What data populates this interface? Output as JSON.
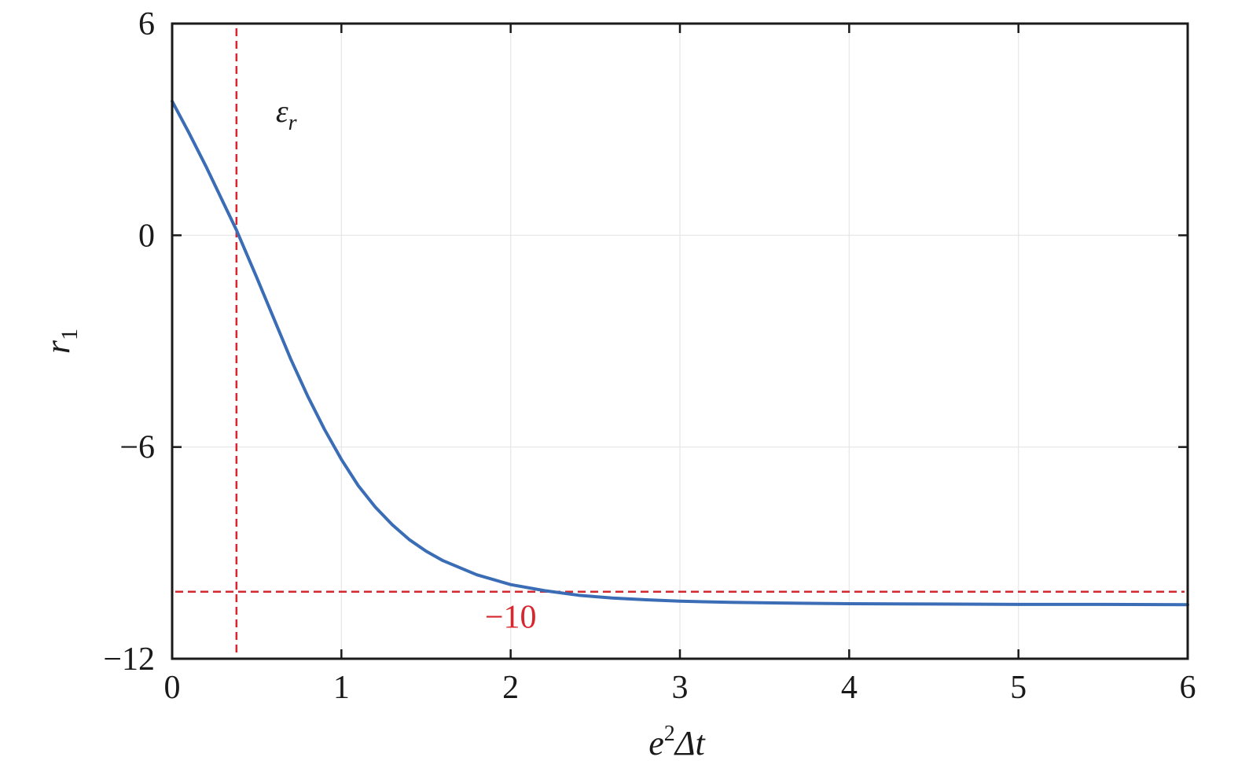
{
  "chart_data": {
    "type": "line",
    "title": "",
    "xlabel": {
      "base": "e",
      "sup": "2",
      "rest": "Δt"
    },
    "ylabel": {
      "base": "r",
      "sub": "1"
    },
    "xlim": [
      0,
      6
    ],
    "ylim": [
      -12,
      6
    ],
    "xticks": [
      0,
      1,
      2,
      3,
      4,
      5,
      6
    ],
    "xtick_labels": [
      "0",
      "1",
      "2",
      "3",
      "4",
      "5",
      "6"
    ],
    "yticks": [
      -12,
      -6,
      0,
      6
    ],
    "ytick_labels": [
      "−12",
      "−6",
      "0",
      "6"
    ],
    "grid": true,
    "series": [
      {
        "color": "#3a6db5",
        "x": [
          0,
          0.1,
          0.2,
          0.3,
          0.38,
          0.5,
          0.6,
          0.7,
          0.8,
          0.9,
          1.0,
          1.1,
          1.2,
          1.3,
          1.4,
          1.5,
          1.6,
          1.8,
          2.0,
          2.2,
          2.4,
          2.6,
          2.8,
          3.0,
          3.3,
          3.6,
          4.0,
          4.5,
          5.0,
          5.5,
          6.0
        ],
        "y": [
          3.8,
          2.9,
          1.95,
          0.95,
          0.15,
          -1.2,
          -2.35,
          -3.5,
          -4.55,
          -5.5,
          -6.35,
          -7.1,
          -7.7,
          -8.2,
          -8.62,
          -8.95,
          -9.22,
          -9.62,
          -9.9,
          -10.07,
          -10.2,
          -10.28,
          -10.33,
          -10.37,
          -10.4,
          -10.42,
          -10.44,
          -10.45,
          -10.46,
          -10.46,
          -10.47
        ]
      }
    ],
    "reference_lines": [
      {
        "orientation": "vertical",
        "x": 0.38,
        "color": "#d7262e",
        "style": "dashed",
        "label": "ε",
        "label_sub": "r"
      },
      {
        "orientation": "horizontal",
        "y": -10.1,
        "color": "#d7262e",
        "style": "dashed",
        "label": "−10"
      }
    ]
  }
}
